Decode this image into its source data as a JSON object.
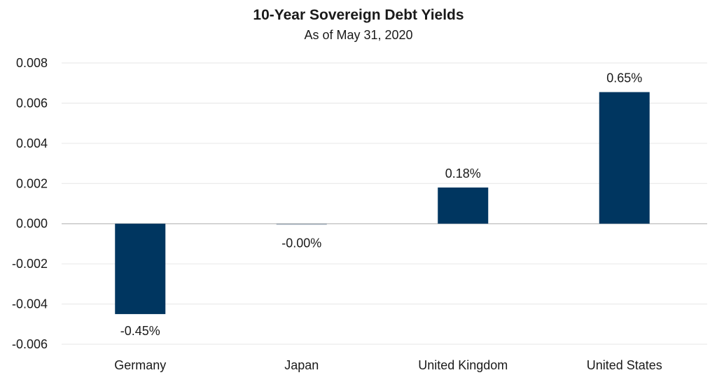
{
  "chart_data": {
    "type": "bar",
    "title": "10-Year Sovereign Debt Yields",
    "subtitle": "As of May 31, 2020",
    "categories": [
      "Germany",
      "Japan",
      "United Kingdom",
      "United States"
    ],
    "values": [
      -0.0045,
      -4e-05,
      0.0018,
      0.00655
    ],
    "data_labels": [
      "-0.45%",
      "-0.00%",
      "0.18%",
      "0.65%"
    ],
    "ylim": [
      -0.006,
      0.008
    ],
    "yticks": [
      "0.008",
      "0.006",
      "0.004",
      "0.002",
      "0.000",
      "-0.002",
      "-0.004",
      "-0.006"
    ],
    "ytick_values": [
      0.008,
      0.006,
      0.004,
      0.002,
      0,
      -0.002,
      -0.004,
      -0.006
    ],
    "grid": true,
    "legend": "none",
    "colors": {
      "bar": "#003660",
      "zero_bar": "#9aa7b4",
      "grid": "#e6e6e6",
      "axis": "#c8c8c8"
    }
  }
}
